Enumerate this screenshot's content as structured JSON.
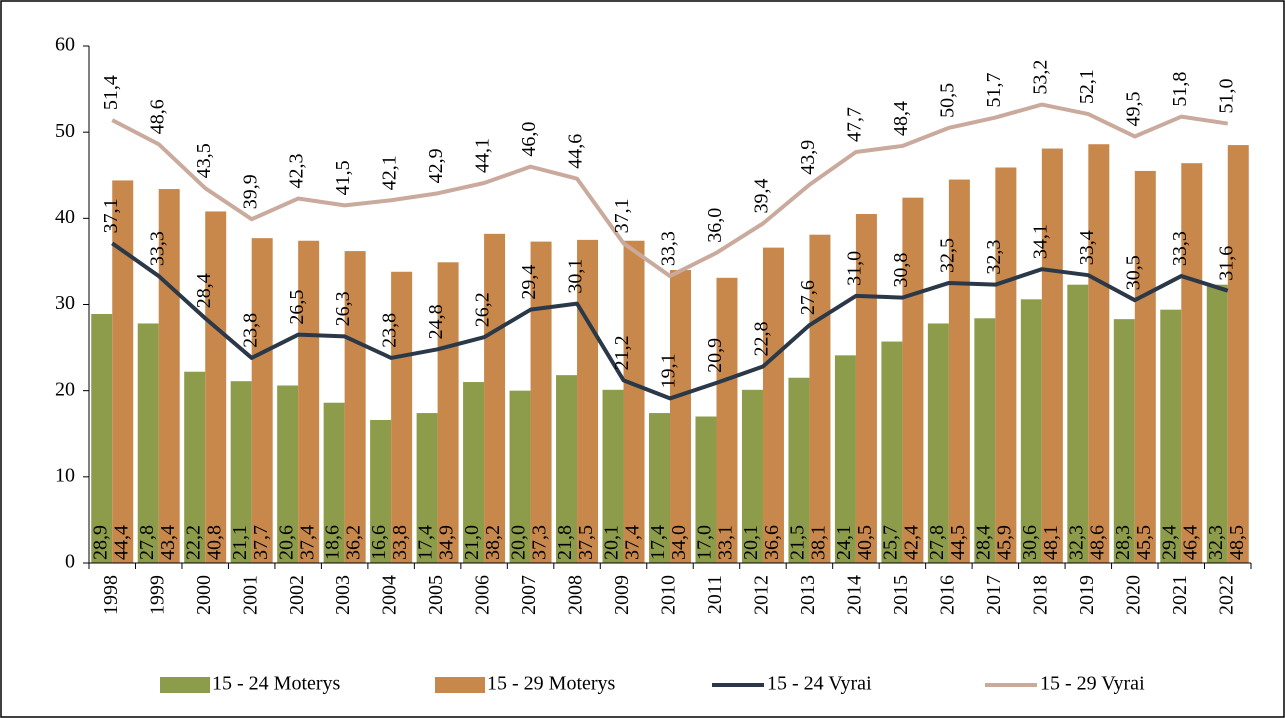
{
  "chart_data": {
    "type": "bar-line",
    "categories": [
      "1998",
      "1999",
      "2000",
      "2001",
      "2002",
      "2003",
      "2004",
      "2005",
      "2006",
      "2007",
      "2008",
      "2009",
      "2010",
      "2011",
      "2012",
      "2013",
      "2014",
      "2015",
      "2016",
      "2017",
      "2018",
      "2019",
      "2020",
      "2021",
      "2022"
    ],
    "ylim": [
      0,
      60
    ],
    "yticks": [
      0,
      10,
      20,
      30,
      40,
      50,
      60
    ],
    "grid": false,
    "legend": "bottom",
    "series": [
      {
        "name": "15 - 24 Moterys",
        "kind": "bar",
        "color": "#8c9c4a",
        "values": [
          28.9,
          27.8,
          22.2,
          21.1,
          20.6,
          18.6,
          16.6,
          17.4,
          21.0,
          20.0,
          21.8,
          20.1,
          17.4,
          17.0,
          20.1,
          21.5,
          24.1,
          25.7,
          27.8,
          28.4,
          30.6,
          32.3,
          28.3,
          29.4,
          32.3
        ],
        "value_labels": [
          "28,9",
          "27,8",
          "22,2",
          "21,1",
          "20,6",
          "18,6",
          "16,6",
          "17,4",
          "21,0",
          "20,0",
          "21,8",
          "20,1",
          "17,4",
          "17,0",
          "20,1",
          "21,5",
          "24,1",
          "25,7",
          "27,8",
          "28,4",
          "30,6",
          "32,3",
          "28,3",
          "29,4",
          "32,3"
        ]
      },
      {
        "name": "15 - 29 Moterys",
        "kind": "bar",
        "color": "#c8884c",
        "values": [
          44.4,
          43.4,
          40.8,
          37.7,
          37.4,
          36.2,
          33.8,
          34.9,
          38.2,
          37.3,
          37.5,
          37.4,
          34.0,
          33.1,
          36.6,
          38.1,
          40.5,
          42.4,
          44.5,
          45.9,
          48.1,
          48.6,
          45.5,
          46.4,
          48.5
        ],
        "value_labels": [
          "44,4",
          "43,4",
          "40,8",
          "37,7",
          "37,4",
          "36,2",
          "33,8",
          "34,9",
          "38,2",
          "37,3",
          "37,5",
          "37,4",
          "34,0",
          "33,1",
          "36,6",
          "38,1",
          "40,5",
          "42,4",
          "44,5",
          "45,9",
          "48,1",
          "48,6",
          "45,5",
          "46,4",
          "48,5"
        ]
      },
      {
        "name": "15 - 24 Vyrai",
        "kind": "line",
        "color": "#2a3848",
        "values": [
          37.1,
          33.3,
          28.4,
          23.8,
          26.5,
          26.3,
          23.8,
          24.8,
          26.2,
          29.4,
          30.1,
          21.2,
          19.1,
          20.9,
          22.8,
          27.6,
          31.0,
          30.8,
          32.5,
          32.3,
          34.1,
          33.4,
          30.5,
          33.3,
          31.6
        ],
        "value_labels": [
          "37,1",
          "33,3",
          "28,4",
          "23,8",
          "26,5",
          "26,3",
          "23,8",
          "24,8",
          "26,2",
          "29,4",
          "30,1",
          "21,2",
          "19,1",
          "20,9",
          "22,8",
          "27,6",
          "31,0",
          "30,8",
          "32,5",
          "32,3",
          "34,1",
          "33,4",
          "30,5",
          "33,3",
          "31,6"
        ]
      },
      {
        "name": "15 - 29 Vyrai",
        "kind": "line",
        "color": "#c9aa9c",
        "values": [
          51.4,
          48.6,
          43.5,
          39.9,
          42.3,
          41.5,
          42.1,
          42.9,
          44.1,
          46.0,
          44.6,
          37.1,
          33.3,
          36.0,
          39.4,
          43.9,
          47.7,
          48.4,
          50.5,
          51.7,
          53.2,
          52.1,
          49.5,
          51.8,
          51.0
        ],
        "value_labels": [
          "51,4",
          "48,6",
          "43,5",
          "39,9",
          "42,3",
          "41,5",
          "42,1",
          "42,9",
          "44,1",
          "46,0",
          "44,6",
          "37,1",
          "33,3",
          "36,0",
          "39,4",
          "43,9",
          "47,7",
          "48,4",
          "50,5",
          "51,7",
          "53,2",
          "52,1",
          "49,5",
          "51,8",
          "51,0"
        ]
      }
    ]
  }
}
